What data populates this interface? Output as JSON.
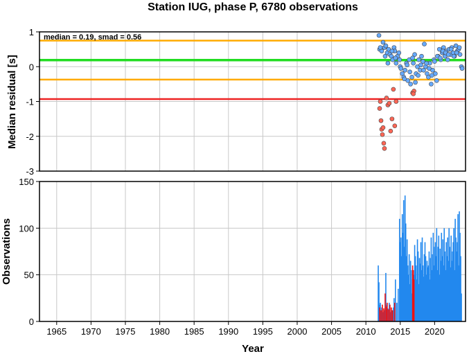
{
  "title": "Station IUG, phase P, 6780 observations",
  "annotation": "median = 0.19, smad = 0.56",
  "colors": {
    "median_line": "#22dd22",
    "smad_line": "#ffaa00",
    "threshold_line": "#ee2222",
    "point_normal": "#66aaff",
    "point_outlier": "#ff6655",
    "bar_normal": "#2288ee",
    "bar_outlier": "#ee1111",
    "grid": "#c8c8c8"
  },
  "chart_data": [
    {
      "type": "scatter",
      "ylabel": "Median residual [s]",
      "xlim": [
        1962.5,
        2024.5
      ],
      "ylim": [
        -3,
        1
      ],
      "yticks": [
        "-3",
        "-2",
        "-1",
        "0",
        "1"
      ],
      "grid": true,
      "reference_lines": [
        {
          "name": "median",
          "value": 0.19,
          "color": "#22dd22"
        },
        {
          "name": "median + smad",
          "value": 0.75,
          "color": "#ffaa00"
        },
        {
          "name": "median - smad",
          "value": -0.37,
          "color": "#ffaa00"
        },
        {
          "name": "outlier threshold",
          "value": -0.93,
          "color": "#ee2222"
        }
      ],
      "series": [
        {
          "values_x": [
            2011.9,
            2012.0,
            2012.3,
            2012.5,
            2012.7,
            2012.9,
            2013.1,
            2013.3,
            2013.5,
            2013.7,
            2013.9,
            2014.1,
            2014.2,
            2014.4,
            2014.6,
            2014.8,
            2015.0,
            2015.3,
            2015.5,
            2015.7,
            2015.9,
            2016.1,
            2016.3,
            2016.5,
            2016.7,
            2016.9,
            2017.1,
            2017.3,
            2017.5,
            2017.7,
            2017.9,
            2018.1,
            2018.3,
            2018.5,
            2018.7,
            2018.9,
            2019.1,
            2019.3,
            2019.5,
            2019.7,
            2019.9,
            2020.1,
            2020.3,
            2020.5,
            2020.7,
            2020.9,
            2021.1,
            2021.3,
            2021.5,
            2021.7,
            2021.9,
            2022.1,
            2022.3,
            2022.5,
            2022.7,
            2022.9,
            2023.1,
            2023.3,
            2023.5,
            2023.7,
            2023.9,
            2012.1,
            2012.8,
            2013.2,
            2013.8,
            2014.3,
            2014.9,
            2015.1,
            2015.6,
            2016.0,
            2016.4,
            2016.8,
            2017.2,
            2017.6,
            2018.0,
            2018.4,
            2018.8,
            2019.2,
            2019.6,
            2020.0,
            2020.4,
            2020.8,
            2021.2,
            2021.6,
            2022.0,
            2022.4,
            2022.8,
            2023.2,
            2023.6,
            2024.0
          ],
          "values_y": [
            0.9,
            0.5,
            0.45,
            0.7,
            0.55,
            0.6,
            0.4,
            0.5,
            0.35,
            0.3,
            0.2,
            0.55,
            0.45,
            0.1,
            0.3,
            0.4,
            0.0,
            -0.2,
            -0.3,
            -0.1,
            0.1,
            -0.4,
            0.2,
            -0.5,
            -0.3,
            0.1,
            0.35,
            -0.2,
            0.0,
            0.2,
            -0.1,
            0.3,
            0.15,
            0.65,
            0.0,
            -0.2,
            -0.3,
            0.1,
            -0.5,
            -0.1,
            0.2,
            -0.2,
            -0.4,
            0.3,
            0.5,
            0.2,
            0.4,
            0.55,
            0.3,
            0.45,
            0.2,
            0.5,
            0.35,
            0.55,
            0.4,
            0.3,
            0.6,
            0.45,
            0.5,
            0.35,
            0.0,
            0.55,
            0.3,
            0.1,
            0.45,
            0.25,
            0.2,
            -0.05,
            -0.35,
            0.05,
            -0.15,
            0.25,
            -0.45,
            -0.25,
            0.05,
            -0.1,
            0.1,
            -0.05,
            -0.25,
            0.15,
            0.3,
            0.25,
            0.45,
            0.4,
            0.35,
            0.5,
            0.3,
            0.4,
            0.55,
            -0.05
          ],
          "outlier": false
        },
        {
          "values_x": [
            2012.0,
            2012.1,
            2012.2,
            2012.3,
            2012.4,
            2012.5,
            2012.6,
            2012.7,
            2013.0,
            2013.2,
            2013.4,
            2013.6,
            2013.8,
            2014.0,
            2014.2,
            2014.4,
            2016.8,
            2017.0,
            2016.9
          ],
          "values_y": [
            -1.2,
            -1.0,
            -1.55,
            -1.8,
            -1.95,
            -1.75,
            -2.2,
            -2.35,
            -0.9,
            -1.1,
            -1.05,
            -1.85,
            -1.5,
            -0.65,
            -1.7,
            -1.0,
            -0.75,
            -0.7,
            -0.78
          ],
          "outlier": true
        }
      ]
    },
    {
      "type": "bar",
      "xlabel": "Year",
      "ylabel": "Observations",
      "xlim": [
        1962.5,
        2024.5
      ],
      "ylim": [
        0,
        150
      ],
      "xticks": [
        "1965",
        "1970",
        "1975",
        "1980",
        "1985",
        "1990",
        "1995",
        "2000",
        "2005",
        "2010",
        "2015",
        "2020"
      ],
      "yticks": [
        "0",
        "50",
        "100",
        "150"
      ],
      "grid": true,
      "series": [
        {
          "name": "normal",
          "x": [
            2011.8,
            2011.9,
            2012.0,
            2012.1,
            2012.3,
            2012.5,
            2012.7,
            2012.9,
            2013.0,
            2013.2,
            2013.4,
            2013.6,
            2013.8,
            2014.0,
            2014.1,
            2014.3,
            2014.5,
            2014.7,
            2014.9,
            2015.0,
            2015.1,
            2015.2,
            2015.3,
            2015.4,
            2015.5,
            2015.6,
            2015.7,
            2015.8,
            2015.9,
            2016.0,
            2016.1,
            2016.2,
            2016.3,
            2016.4,
            2016.5,
            2016.6,
            2016.7,
            2016.8,
            2016.9,
            2017.0,
            2017.1,
            2017.2,
            2017.3,
            2017.4,
            2017.5,
            2017.6,
            2017.7,
            2017.8,
            2017.9,
            2018.0,
            2018.1,
            2018.2,
            2018.3,
            2018.4,
            2018.5,
            2018.6,
            2018.7,
            2018.8,
            2018.9,
            2019.0,
            2019.1,
            2019.2,
            2019.3,
            2019.4,
            2019.5,
            2019.6,
            2019.7,
            2019.8,
            2019.9,
            2020.0,
            2020.1,
            2020.2,
            2020.3,
            2020.4,
            2020.5,
            2020.6,
            2020.7,
            2020.8,
            2020.9,
            2021.0,
            2021.1,
            2021.2,
            2021.3,
            2021.4,
            2021.5,
            2021.6,
            2021.7,
            2021.8,
            2021.9,
            2022.0,
            2022.1,
            2022.2,
            2022.3,
            2022.4,
            2022.5,
            2022.6,
            2022.7,
            2022.8,
            2022.9,
            2023.0,
            2023.1,
            2023.2,
            2023.3,
            2023.4,
            2023.5,
            2023.6,
            2023.7,
            2023.8,
            2023.9
          ],
          "values": [
            60,
            42,
            18,
            20,
            15,
            10,
            12,
            52,
            18,
            14,
            20,
            10,
            12,
            15,
            25,
            45,
            20,
            35,
            110,
            85,
            90,
            70,
            115,
            95,
            130,
            80,
            135,
            105,
            70,
            88,
            60,
            50,
            72,
            40,
            65,
            55,
            30,
            45,
            55,
            50,
            82,
            70,
            60,
            45,
            88,
            75,
            40,
            68,
            62,
            85,
            55,
            90,
            60,
            48,
            72,
            85,
            70,
            50,
            65,
            58,
            60,
            75,
            45,
            68,
            90,
            55,
            72,
            95,
            60,
            80,
            85,
            70,
            100,
            55,
            80,
            92,
            50,
            78,
            65,
            95,
            70,
            88,
            60,
            100,
            75,
            55,
            85,
            70,
            90,
            65,
            100,
            80,
            58,
            92,
            65,
            75,
            85,
            100,
            55,
            110,
            90,
            75,
            85,
            115,
            60,
            118,
            95,
            70,
            30
          ]
        },
        {
          "name": "outlier",
          "x": [
            2012.0,
            2012.2,
            2012.4,
            2012.6,
            2012.8,
            2013.0,
            2013.1,
            2013.3,
            2013.5,
            2013.7,
            2013.9,
            2014.2,
            2016.8,
            2016.9,
            2017.0
          ],
          "values": [
            15,
            12,
            18,
            14,
            30,
            16,
            20,
            13,
            18,
            15,
            12,
            20,
            60,
            55,
            45
          ]
        }
      ]
    }
  ]
}
